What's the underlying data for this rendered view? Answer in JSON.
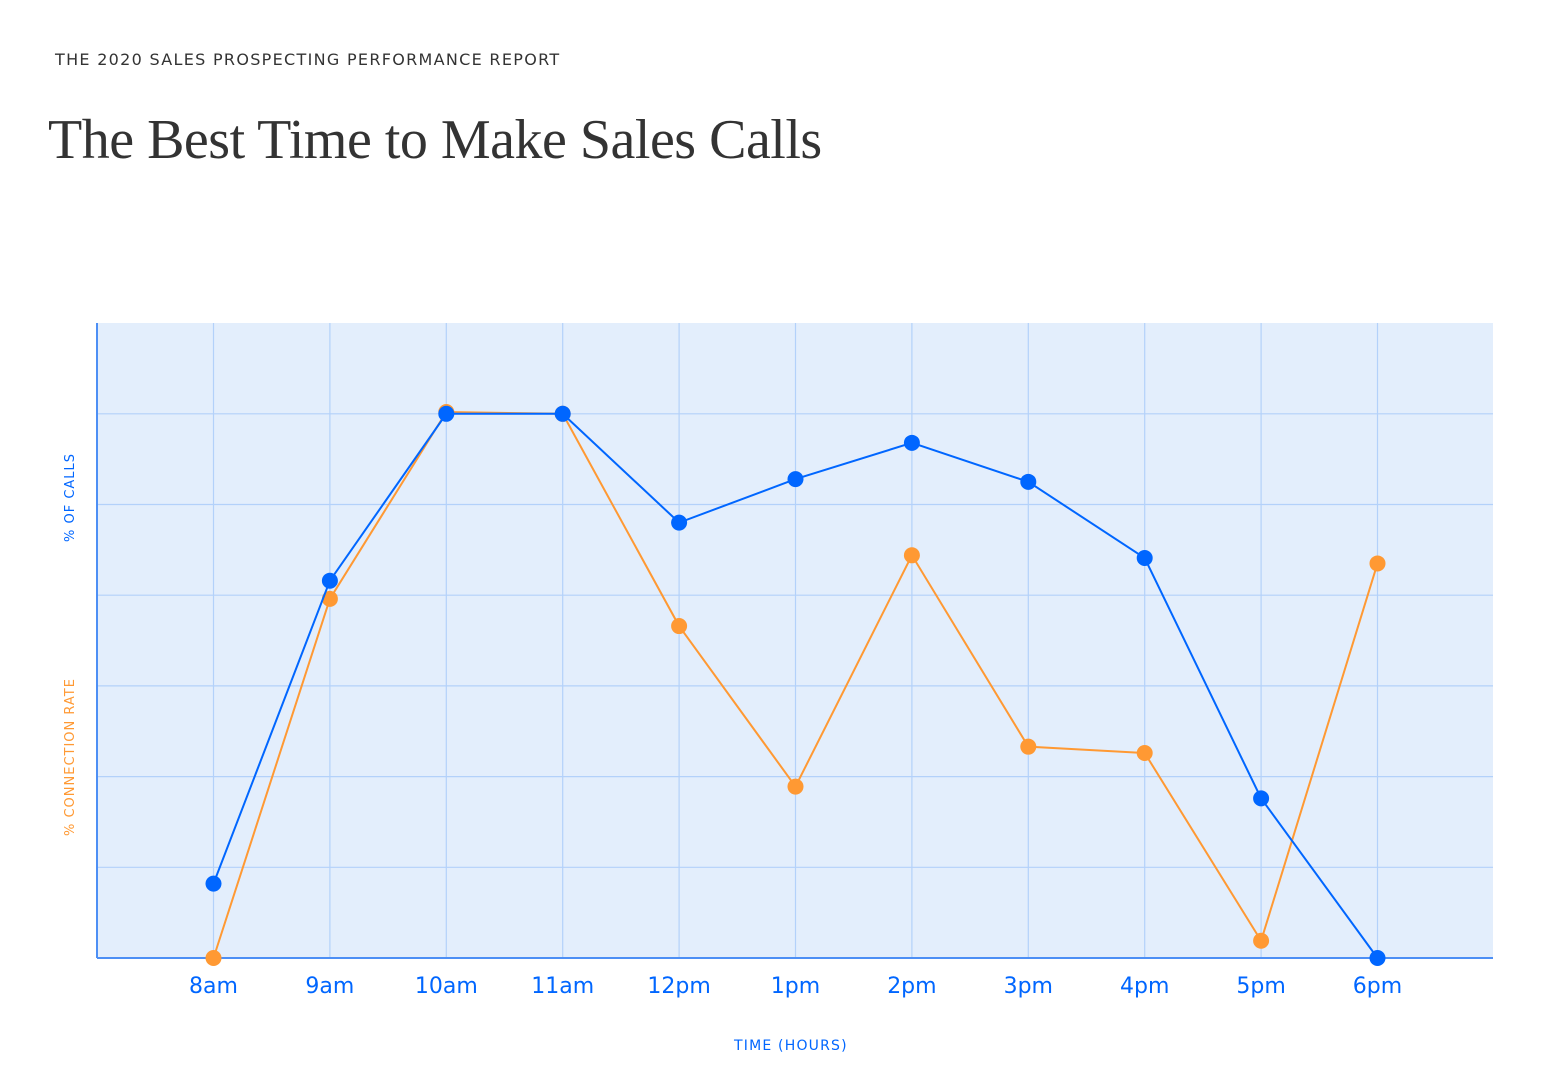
{
  "header": {
    "eyebrow": "THE 2020 SALES PROSPECTING PERFORMANCE REPORT",
    "title": "The Best Time to Make Sales Calls"
  },
  "colors": {
    "calls": "#0066ff",
    "connection": "#ff9933",
    "plot_bg": "#e3eefc",
    "grid": "#b3d1fa",
    "axis": "#4d8ff5"
  },
  "chart_data": {
    "type": "line",
    "title": "The Best Time to Make Sales Calls",
    "xlabel": "TIME (HOURS)",
    "ylabel": "% OF CALLS / % CONNECTION RATE",
    "categories": [
      "8am",
      "9am",
      "10am",
      "11am",
      "12pm",
      "1pm",
      "2pm",
      "3pm",
      "4pm",
      "5pm",
      "6pm"
    ],
    "y_units": "relative grid units (no numeric ticks shown)",
    "ylim": [
      0,
      7
    ],
    "grid": true,
    "legend": "none (series identified by colored y-axis labels)",
    "series": [
      {
        "name": "% OF CALLS",
        "color": "#0066ff",
        "values": [
          0.82,
          4.16,
          6.0,
          6.0,
          4.8,
          5.28,
          5.68,
          5.25,
          4.41,
          1.76,
          0.0
        ]
      },
      {
        "name": "% CONNECTION RATE",
        "color": "#ff9933",
        "values": [
          0.0,
          3.96,
          6.02,
          6.0,
          3.66,
          1.89,
          4.44,
          2.33,
          2.26,
          0.19,
          4.35
        ]
      }
    ]
  },
  "axes": {
    "y_label_calls": "% OF CALLS",
    "y_label_connection": "% CONNECTION RATE",
    "x_title": "TIME (HOURS)"
  }
}
